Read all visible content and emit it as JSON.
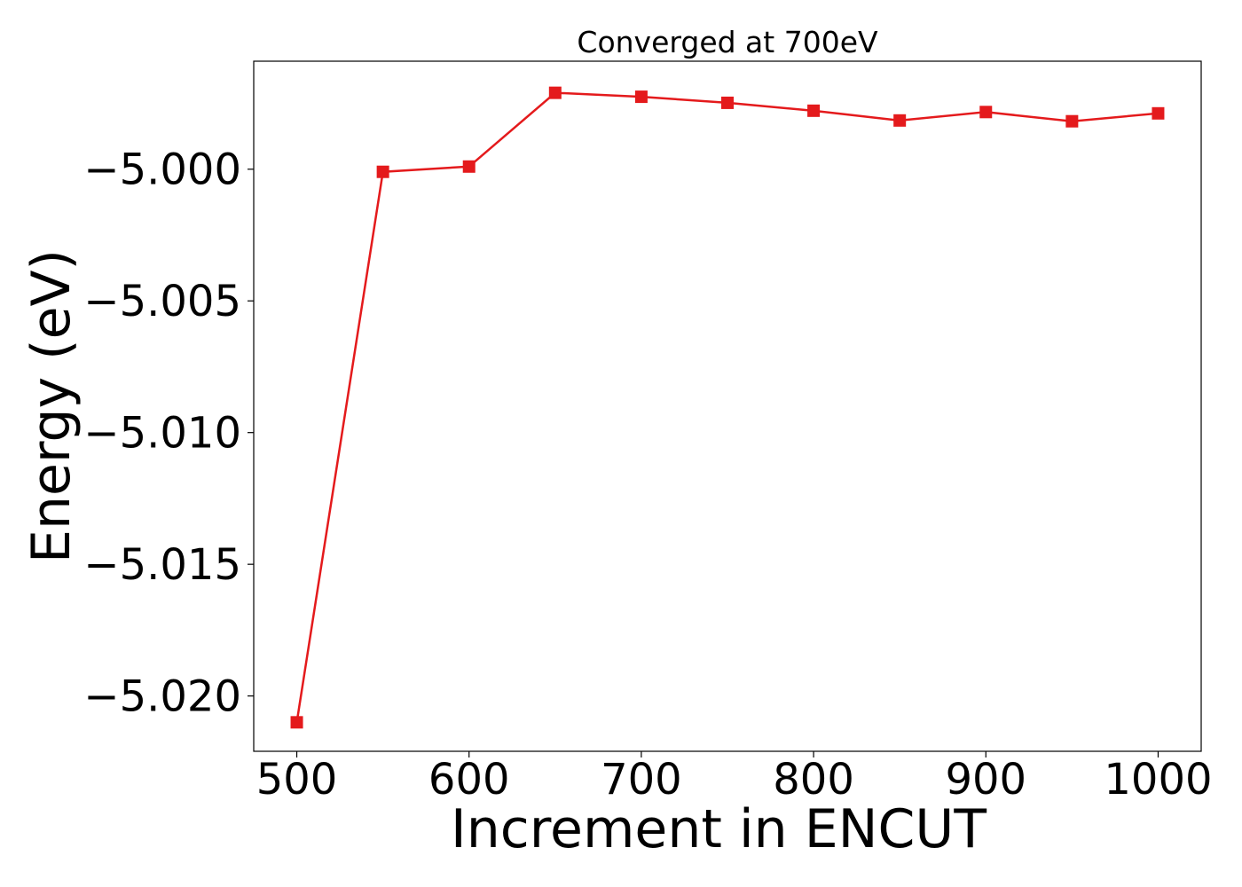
{
  "chart_data": {
    "type": "line",
    "title": "Converged at 700eV",
    "xlabel": "Increment in ENCUT",
    "ylabel": "Energy (eV)",
    "x": [
      500,
      550,
      600,
      650,
      700,
      750,
      800,
      850,
      900,
      950,
      1000
    ],
    "series": [
      {
        "values": [
          -5.021,
          -5.0001,
          -4.9999,
          -4.9971,
          -4.99725,
          -4.99748,
          -4.99778,
          -4.99815,
          -4.99783,
          -4.99818,
          -4.99788
        ],
        "color": "#e41a1c",
        "marker": "square"
      }
    ],
    "xlim": [
      475,
      1025
    ],
    "ylim": [
      -5.0221,
      -4.9959
    ],
    "xticks": [
      500,
      600,
      700,
      800,
      900,
      1000
    ],
    "xtick_labels": [
      "500",
      "600",
      "700",
      "800",
      "900",
      "1000"
    ],
    "yticks": [
      -5.0,
      -5.005,
      -5.01,
      -5.015,
      -5.02
    ],
    "ytick_labels": [
      "−5.000",
      "−5.005",
      "−5.010",
      "−5.015",
      "−5.020"
    ],
    "grid": false,
    "legend": "none"
  }
}
